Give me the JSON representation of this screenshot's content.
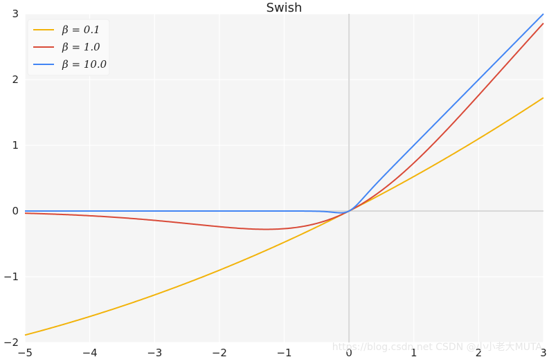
{
  "chart_data": {
    "type": "line",
    "title": "Swish",
    "xlabel": "",
    "ylabel": "",
    "xlim": [
      -5,
      3
    ],
    "ylim": [
      -2,
      3
    ],
    "x_ticks": [
      "−5",
      "−4",
      "−3",
      "−2",
      "−1",
      "0",
      "1",
      "2",
      "3"
    ],
    "y_ticks": [
      "−2",
      "−1",
      "0",
      "1",
      "2",
      "3"
    ],
    "grid": true,
    "legend_position": "top-left",
    "function": "y = x * sigmoid(beta * x)",
    "x_start": -5,
    "x_end": 3,
    "series": [
      {
        "name": "β = 0.1",
        "beta": 0.1,
        "color": "#f2b30a"
      },
      {
        "name": "β = 1.0",
        "beta": 1.0,
        "color": "#d94a38"
      },
      {
        "name": "β = 10.0",
        "beta": 10.0,
        "color": "#4285f4"
      }
    ]
  },
  "watermark": "https://blog.csdn.net  CSDN @小小老大MUTA"
}
